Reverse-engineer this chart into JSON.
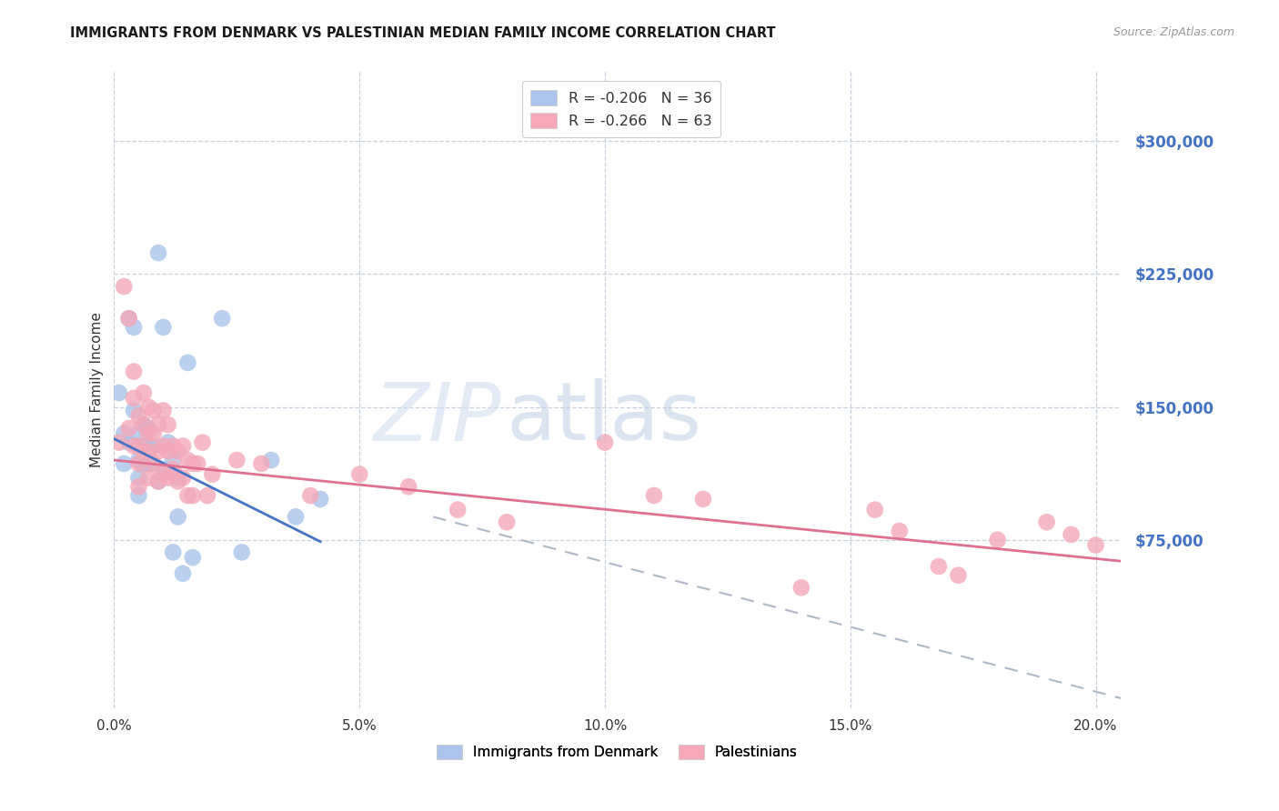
{
  "title": "IMMIGRANTS FROM DENMARK VS PALESTINIAN MEDIAN FAMILY INCOME CORRELATION CHART",
  "source": "Source: ZipAtlas.com",
  "ylabel": "Median Family Income",
  "ytick_labels": [
    "$75,000",
    "$150,000",
    "$225,000",
    "$300,000"
  ],
  "ytick_values": [
    75000,
    150000,
    225000,
    300000
  ],
  "xlim": [
    0.0,
    0.205
  ],
  "ylim": [
    -20000,
    340000
  ],
  "denmark_scatter_x": [
    0.001,
    0.002,
    0.002,
    0.003,
    0.003,
    0.004,
    0.004,
    0.005,
    0.005,
    0.005,
    0.005,
    0.005,
    0.006,
    0.006,
    0.006,
    0.007,
    0.007,
    0.007,
    0.008,
    0.009,
    0.009,
    0.01,
    0.01,
    0.011,
    0.012,
    0.012,
    0.013,
    0.013,
    0.014,
    0.015,
    0.016,
    0.022,
    0.026,
    0.032,
    0.037,
    0.042
  ],
  "denmark_scatter_y": [
    158000,
    135000,
    118000,
    200000,
    130000,
    195000,
    148000,
    135000,
    128000,
    120000,
    110000,
    100000,
    140000,
    128000,
    118000,
    138000,
    128000,
    118000,
    128000,
    237000,
    108000,
    195000,
    115000,
    130000,
    120000,
    68000,
    110000,
    88000,
    56000,
    175000,
    65000,
    200000,
    68000,
    120000,
    88000,
    98000
  ],
  "palestine_scatter_x": [
    0.001,
    0.002,
    0.003,
    0.003,
    0.004,
    0.004,
    0.004,
    0.005,
    0.005,
    0.005,
    0.005,
    0.006,
    0.006,
    0.006,
    0.007,
    0.007,
    0.007,
    0.007,
    0.008,
    0.008,
    0.008,
    0.009,
    0.009,
    0.009,
    0.01,
    0.01,
    0.01,
    0.011,
    0.011,
    0.011,
    0.012,
    0.012,
    0.013,
    0.013,
    0.014,
    0.014,
    0.015,
    0.015,
    0.016,
    0.016,
    0.017,
    0.018,
    0.019,
    0.02,
    0.025,
    0.03,
    0.04,
    0.05,
    0.06,
    0.07,
    0.08,
    0.1,
    0.11,
    0.12,
    0.14,
    0.155,
    0.16,
    0.168,
    0.172,
    0.18,
    0.19,
    0.195,
    0.2
  ],
  "palestine_scatter_y": [
    130000,
    218000,
    200000,
    138000,
    170000,
    155000,
    128000,
    145000,
    128000,
    118000,
    105000,
    158000,
    140000,
    125000,
    150000,
    135000,
    125000,
    110000,
    148000,
    135000,
    118000,
    140000,
    125000,
    108000,
    148000,
    128000,
    112000,
    140000,
    125000,
    110000,
    128000,
    115000,
    125000,
    108000,
    128000,
    110000,
    120000,
    100000,
    118000,
    100000,
    118000,
    130000,
    100000,
    112000,
    120000,
    118000,
    100000,
    112000,
    105000,
    92000,
    85000,
    130000,
    100000,
    98000,
    48000,
    92000,
    80000,
    60000,
    55000,
    75000,
    85000,
    78000,
    72000
  ],
  "denmark_line_x": [
    0.0,
    0.042
  ],
  "denmark_line_y": [
    132000,
    74000
  ],
  "palestine_line_x": [
    0.0,
    0.205
  ],
  "palestine_line_y": [
    120000,
    63000
  ],
  "dashed_line_x": [
    0.065,
    0.21
  ],
  "dashed_line_y": [
    88000,
    -18000
  ],
  "scatter_size": 180,
  "denmark_scatter_color": "#aac4ea",
  "palestine_scatter_color": "#f4a8b8",
  "denmark_line_color": "#4472c4",
  "palestine_line_color": "#e07090",
  "dashed_line_color": "#b0b8c8",
  "axis_label_color": "#4472c4",
  "background_color": "#ffffff",
  "legend_r1": "R = -0.206   N = 36",
  "legend_r2": "R = -0.266   N = 63",
  "bottom_legend_1": "Immigrants from Denmark",
  "bottom_legend_2": "Palestinians",
  "x_ticks": [
    0.0,
    0.05,
    0.1,
    0.15,
    0.2
  ],
  "x_tick_labels": [
    "0.0%",
    "5.0%",
    "10.0%",
    "15.0%",
    "20.0%"
  ]
}
